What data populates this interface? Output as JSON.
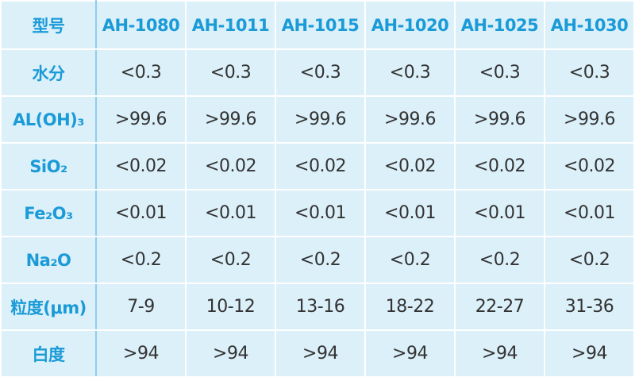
{
  "table": {
    "header": [
      "型号",
      "AH-1080",
      "AH-1011",
      "AH-1015",
      "AH-1020",
      "AH-1025",
      "AH-1030"
    ],
    "rows": [
      [
        "水分",
        "<0.3",
        "<0.3",
        "<0.3",
        "<0.3",
        "<0.3",
        "<0.3"
      ],
      [
        "AL(OH)₃",
        ">99.6",
        ">99.6",
        ">99.6",
        ">99.6",
        ">99.6",
        ">99.6"
      ],
      [
        "SiO₂",
        "<0.02",
        "<0.02",
        "<0.02",
        "<0.02",
        "<0.02",
        "<0.02"
      ],
      [
        "Fe₂O₃",
        "<0.01",
        "<0.01",
        "<0.01",
        "<0.01",
        "<0.01",
        "<0.01"
      ],
      [
        "Na₂O",
        "<0.2",
        "<0.2",
        "<0.2",
        "<0.2",
        "<0.2",
        "<0.2"
      ],
      [
        "粒度(μm)",
        "7-9",
        "10-12",
        "13-16",
        "18-22",
        "22-27",
        "31-36"
      ],
      [
        "白度",
        ">94",
        ">94",
        ">94",
        ">94",
        ">94",
        ">94"
      ]
    ]
  }
}
